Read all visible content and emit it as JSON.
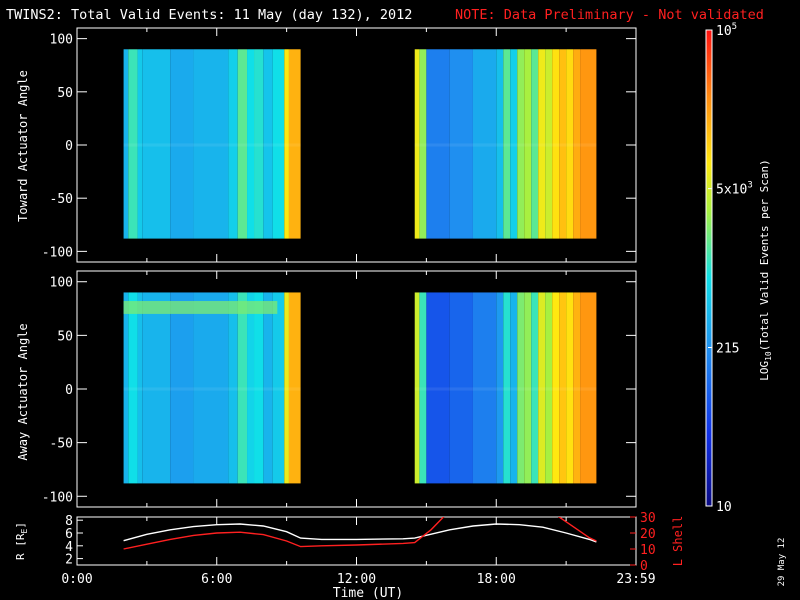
{
  "header": {
    "title": "TWINS2: Total Valid Events: 11 May (day 132), 2012",
    "note": "NOTE: Data Preliminary - Not validated"
  },
  "colors": {
    "background": "#000000",
    "axes": "#ffffff",
    "note": "#ff2020",
    "r_line": "#ffffff",
    "lshell_line": "#ff2020"
  },
  "chart_data": [
    {
      "type": "heatmap",
      "name": "toward",
      "ylabel": "Toward Actuator Angle",
      "xlim": [
        0,
        24
      ],
      "ylim": [
        -110,
        110
      ],
      "y_ticks": [
        100,
        50,
        0,
        -50,
        -100
      ],
      "data_blocks": [
        {
          "x_start": 2.0,
          "x_end": 9.6,
          "y_start": -88,
          "y_end": 90
        },
        {
          "x_start": 14.5,
          "x_end": 22.3,
          "y_start": -88,
          "y_end": 90
        }
      ],
      "columns": [
        [
          2.0,
          2.2,
          0.4
        ],
        [
          2.2,
          2.6,
          0.52
        ],
        [
          2.6,
          2.8,
          0.44
        ],
        [
          2.8,
          4.0,
          0.42
        ],
        [
          4.0,
          5.0,
          0.38
        ],
        [
          5.0,
          6.5,
          0.4
        ],
        [
          6.5,
          6.9,
          0.45
        ],
        [
          6.9,
          7.3,
          0.55
        ],
        [
          7.3,
          7.6,
          0.48
        ],
        [
          7.6,
          8.0,
          0.5
        ],
        [
          8.0,
          8.4,
          0.43
        ],
        [
          8.4,
          8.9,
          0.48
        ],
        [
          8.9,
          9.1,
          0.72
        ],
        [
          9.1,
          9.6,
          0.8
        ],
        [
          14.5,
          14.7,
          0.7
        ],
        [
          14.7,
          15.0,
          0.6
        ],
        [
          15.0,
          16.0,
          0.3
        ],
        [
          16.0,
          17.0,
          0.33
        ],
        [
          17.0,
          18.0,
          0.38
        ],
        [
          18.0,
          18.3,
          0.42
        ],
        [
          18.3,
          18.6,
          0.55
        ],
        [
          18.6,
          18.9,
          0.45
        ],
        [
          18.9,
          19.2,
          0.6
        ],
        [
          19.2,
          19.5,
          0.62
        ],
        [
          19.5,
          19.8,
          0.55
        ],
        [
          19.8,
          20.1,
          0.7
        ],
        [
          20.1,
          20.4,
          0.66
        ],
        [
          20.4,
          20.7,
          0.73
        ],
        [
          20.7,
          21.0,
          0.78
        ],
        [
          21.0,
          21.3,
          0.74
        ],
        [
          21.3,
          21.6,
          0.81
        ],
        [
          21.6,
          22.3,
          0.84
        ]
      ]
    },
    {
      "type": "heatmap",
      "name": "away",
      "ylabel": "Away Actuator Angle",
      "xlim": [
        0,
        24
      ],
      "ylim": [
        -110,
        110
      ],
      "y_ticks": [
        100,
        50,
        0,
        -50,
        -100
      ],
      "data_blocks": [
        {
          "x_start": 2.0,
          "x_end": 9.6,
          "y_start": -88,
          "y_end": 90
        },
        {
          "x_start": 14.5,
          "x_end": 22.3,
          "y_start": -88,
          "y_end": 90
        }
      ],
      "columns": [
        [
          2.0,
          2.2,
          0.4
        ],
        [
          2.2,
          2.6,
          0.48
        ],
        [
          2.6,
          2.8,
          0.42
        ],
        [
          2.8,
          4.0,
          0.4
        ],
        [
          4.0,
          5.0,
          0.36
        ],
        [
          5.0,
          6.5,
          0.38
        ],
        [
          6.5,
          6.9,
          0.42
        ],
        [
          6.9,
          7.3,
          0.52
        ],
        [
          7.3,
          7.6,
          0.46
        ],
        [
          7.6,
          8.0,
          0.48
        ],
        [
          8.0,
          8.4,
          0.4
        ],
        [
          8.4,
          8.9,
          0.44
        ],
        [
          8.9,
          9.1,
          0.7
        ],
        [
          9.1,
          9.6,
          0.8
        ],
        [
          14.5,
          14.7,
          0.66
        ],
        [
          14.7,
          15.0,
          0.52
        ],
        [
          15.0,
          16.0,
          0.22
        ],
        [
          16.0,
          17.0,
          0.25
        ],
        [
          17.0,
          18.0,
          0.3
        ],
        [
          18.0,
          18.3,
          0.35
        ],
        [
          18.3,
          18.6,
          0.5
        ],
        [
          18.6,
          18.9,
          0.4
        ],
        [
          18.9,
          19.2,
          0.58
        ],
        [
          19.2,
          19.5,
          0.6
        ],
        [
          19.5,
          19.8,
          0.52
        ],
        [
          19.8,
          20.1,
          0.68
        ],
        [
          20.1,
          20.4,
          0.62
        ],
        [
          20.4,
          20.7,
          0.72
        ],
        [
          20.7,
          21.0,
          0.77
        ],
        [
          21.0,
          21.3,
          0.73
        ],
        [
          21.3,
          21.6,
          0.8
        ],
        [
          21.6,
          22.3,
          0.84
        ]
      ],
      "bright_band": {
        "x_start": 2.0,
        "x_end": 8.6,
        "y_start": 70,
        "y_end": 82,
        "level": 0.58
      }
    },
    {
      "type": "line",
      "name": "orbit",
      "ylabel_left": "R [R",
      "ylabel_left_sub": "E",
      "ylabel_left_end": "]",
      "ylabel_right": "L Shell",
      "xlim": [
        0,
        24
      ],
      "ylim_left": [
        1,
        8.5
      ],
      "ylim_right": [
        0,
        30
      ],
      "y_ticks_left": [
        8,
        6,
        4,
        2
      ],
      "y_ticks_right": [
        30,
        20,
        10,
        0
      ],
      "xlabel": "Time (UT)",
      "x_ticks": [
        {
          "value": 0,
          "label": "0:00"
        },
        {
          "value": 6,
          "label": "6:00"
        },
        {
          "value": 12,
          "label": "12:00"
        },
        {
          "value": 18,
          "label": "18:00"
        },
        {
          "value": 24,
          "label": "23:59"
        }
      ],
      "series": [
        {
          "name": "R",
          "axis": "left",
          "x": [
            2.0,
            3.0,
            4.0,
            5.0,
            6.0,
            7.0,
            8.0,
            9.0,
            9.6,
            10.5,
            12.0,
            14.0,
            14.5,
            16.0,
            17.0,
            18.0,
            19.0,
            20.0,
            21.0,
            22.0,
            22.3
          ],
          "y": [
            4.8,
            5.8,
            6.5,
            7.0,
            7.3,
            7.4,
            7.1,
            6.2,
            5.2,
            5.0,
            5.0,
            5.1,
            5.2,
            6.5,
            7.1,
            7.4,
            7.3,
            6.9,
            6.0,
            5.0,
            4.6
          ]
        },
        {
          "name": "L Shell",
          "axis": "right",
          "x": [
            2.0,
            3.0,
            4.0,
            5.0,
            6.0,
            7.0,
            8.0,
            9.0,
            9.6,
            10.5,
            12.0,
            14.0,
            14.5,
            15.2,
            15.8
          ],
          "y": [
            10,
            13,
            16,
            18.5,
            20,
            20.5,
            19,
            15,
            11.5,
            12,
            12.5,
            13.5,
            14,
            22,
            31
          ],
          "x2": [
            20.6,
            21.3,
            22.0,
            22.3
          ],
          "y2": [
            31,
            24,
            17,
            15
          ]
        }
      ]
    }
  ],
  "colorbar": {
    "label": "LOG",
    "label_sub": "10",
    "label_rest": "(Total Valid Events per Scan)",
    "ticks": [
      {
        "label": "10",
        "level": 0.0
      },
      {
        "label": "215",
        "level": 0.333
      },
      {
        "label": "5x10",
        "sup": "3",
        "level": 0.6667
      },
      {
        "label": "10",
        "sup": "5",
        "level": 1.0
      }
    ]
  },
  "footer": {
    "date": "29 May 12"
  }
}
